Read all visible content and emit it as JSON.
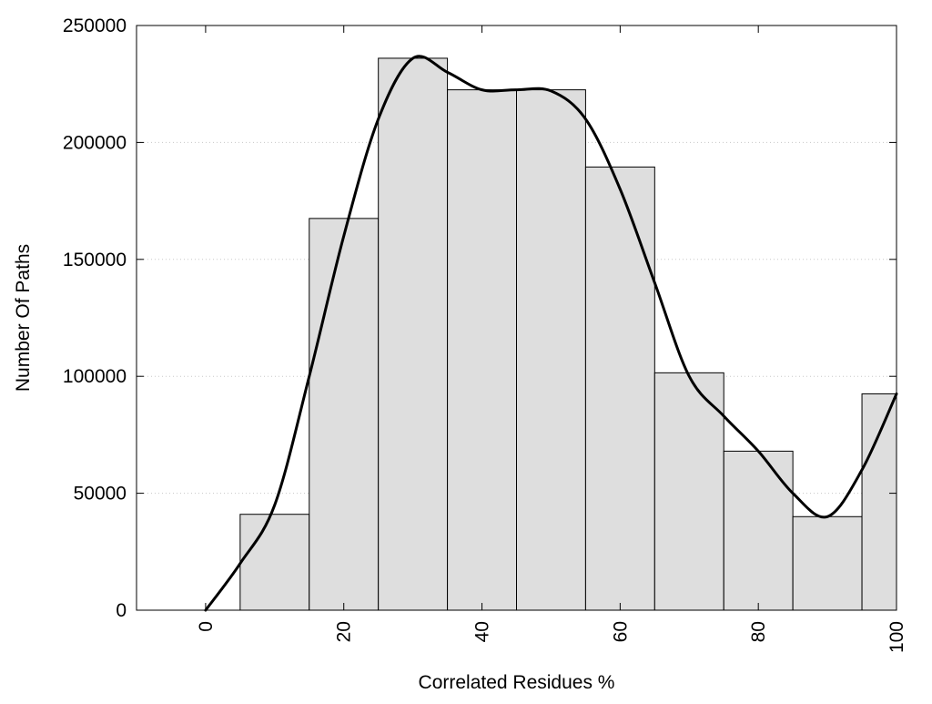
{
  "chart_data": {
    "type": "bar",
    "title": "",
    "xlabel": "Correlated Residues %",
    "ylabel": "Number Of Paths",
    "xlim": [
      -10,
      100
    ],
    "ylim": [
      0,
      250000
    ],
    "x_ticks": [
      0,
      20,
      40,
      60,
      80,
      100
    ],
    "y_ticks": [
      0,
      50000,
      100000,
      150000,
      200000,
      250000
    ],
    "grid": "horizontal dotted",
    "bins": [
      {
        "from": 5,
        "to": 15,
        "value": 41000
      },
      {
        "from": 15,
        "to": 25,
        "value": 167500
      },
      {
        "from": 25,
        "to": 35,
        "value": 236000
      },
      {
        "from": 35,
        "to": 45,
        "value": 222500
      },
      {
        "from": 45,
        "to": 55,
        "value": 222500
      },
      {
        "from": 55,
        "to": 65,
        "value": 189500
      },
      {
        "from": 65,
        "to": 75,
        "value": 101500
      },
      {
        "from": 75,
        "to": 85,
        "value": 68000
      },
      {
        "from": 85,
        "to": 95,
        "value": 40000
      },
      {
        "from": 95,
        "to": 100,
        "value": 92500
      }
    ],
    "curve": {
      "x": [
        0,
        5,
        10,
        15,
        20,
        25,
        30,
        35,
        40,
        45,
        50,
        55,
        60,
        65,
        70,
        75,
        80,
        85,
        90,
        95,
        100
      ],
      "y": [
        0,
        20000,
        45000,
        100000,
        160000,
        210000,
        236000,
        230000,
        222500,
        222500,
        222000,
        210000,
        180000,
        140000,
        100000,
        83000,
        68000,
        50000,
        40000,
        60000,
        92500
      ]
    },
    "colors": {
      "bar_fill": "#dedede",
      "bar_stroke": "#000000",
      "curve": "#000000",
      "grid": "#c8c8c8"
    }
  }
}
